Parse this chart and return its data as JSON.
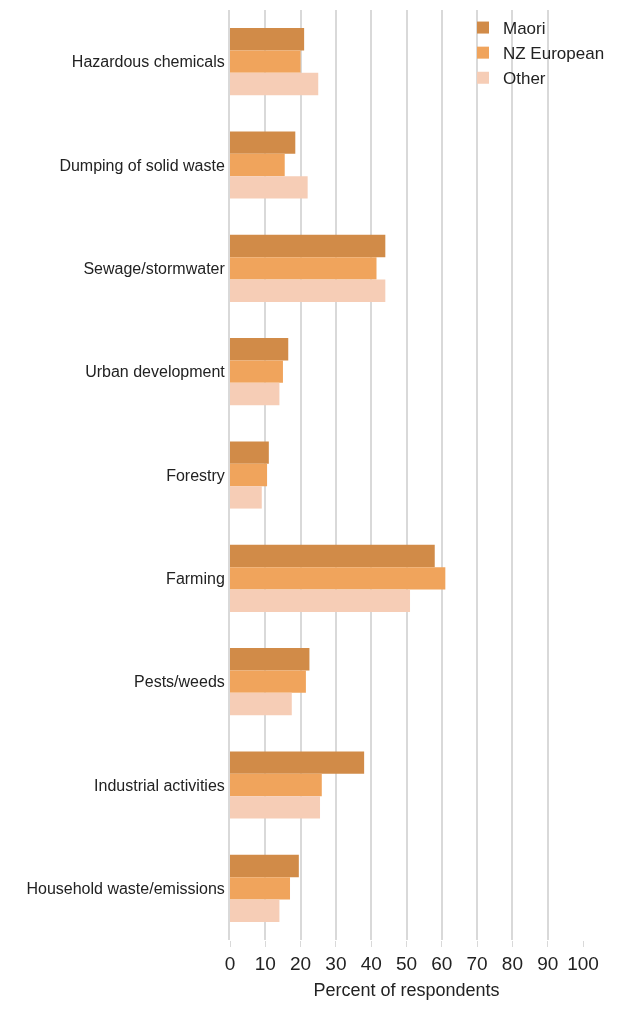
{
  "chart_data": {
    "type": "bar",
    "orientation": "horizontal",
    "xlabel": "Percent of respondents",
    "categories": [
      "Hazardous chemicals",
      "Dumping of solid waste",
      "Sewage/stormwater",
      "Urban development",
      "Forestry",
      "Farming",
      "Pests/weeds",
      "Industrial activities",
      "Household waste/emissions"
    ],
    "series": [
      {
        "name": "Maori",
        "color": "#d18b48",
        "values": [
          21,
          18.5,
          44,
          16.5,
          11,
          58,
          22.5,
          38,
          19.5
        ]
      },
      {
        "name": "NZ European",
        "color": "#f0a45c",
        "values": [
          20,
          15.5,
          41.5,
          15,
          10.5,
          61,
          21.5,
          26,
          17
        ]
      },
      {
        "name": "Other",
        "color": "#f6cdb6",
        "values": [
          25,
          22,
          44,
          14,
          9,
          51,
          17.5,
          25.5,
          14
        ]
      }
    ],
    "xlim": [
      0,
      100
    ],
    "xticks": [
      0,
      10,
      20,
      30,
      40,
      50,
      60,
      70,
      80,
      90,
      100
    ],
    "grid": "x",
    "legend": "top right"
  }
}
